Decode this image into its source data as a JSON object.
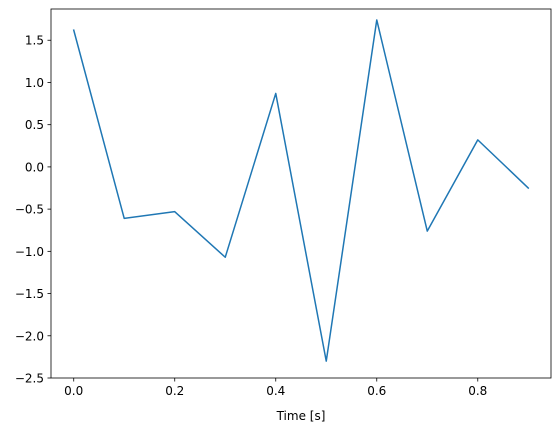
{
  "chart_data": {
    "type": "line",
    "xlabel": "Time [s]",
    "ylabel": "",
    "title": "",
    "xlim": [
      -0.045,
      0.945
    ],
    "ylim": [
      -2.5,
      1.87
    ],
    "xticks": [
      0.0,
      0.2,
      0.4,
      0.6,
      0.8
    ],
    "xtick_labels": [
      "0.0",
      "0.2",
      "0.4",
      "0.6",
      "0.8"
    ],
    "yticks": [
      -2.5,
      -2.0,
      -1.5,
      -1.0,
      -0.5,
      0.0,
      0.5,
      1.0,
      1.5
    ],
    "ytick_labels": [
      "−2.5",
      "−2.0",
      "−1.5",
      "−1.0",
      "−0.5",
      "0.0",
      "0.5",
      "1.0",
      "1.5"
    ],
    "grid": false,
    "series": [
      {
        "color": "#1f77b4",
        "x": [
          0.0,
          0.1,
          0.2,
          0.3,
          0.4,
          0.5,
          0.6,
          0.7,
          0.8,
          0.9
        ],
        "y": [
          1.62,
          -0.61,
          -0.53,
          -1.07,
          0.87,
          -2.3,
          1.74,
          -0.76,
          0.32,
          -0.25
        ]
      }
    ]
  }
}
